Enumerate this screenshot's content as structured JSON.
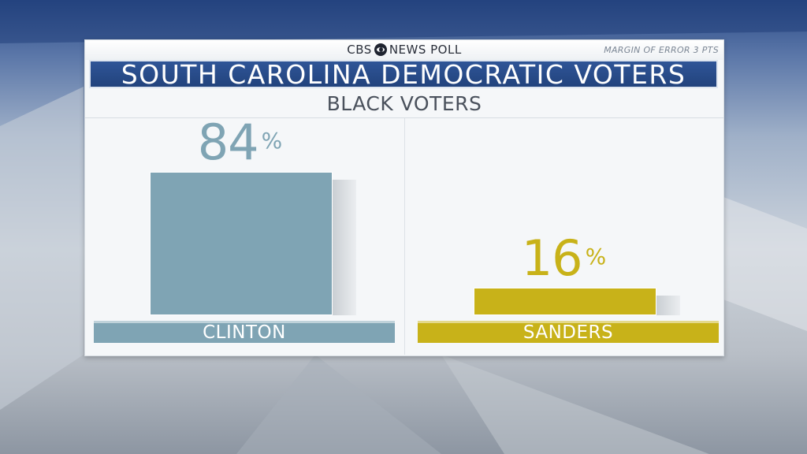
{
  "header": {
    "brand_left": "CBS",
    "brand_right": "NEWS POLL",
    "margin_of_error": "MARGIN OF ERROR 3 PTS"
  },
  "colors": {
    "title_bar": "#2a4d8c",
    "clinton": "#7fa4b4",
    "sanders": "#c8b219"
  },
  "icons": {
    "brand_logo": "cbs-eye-icon"
  },
  "chart_data": {
    "type": "bar",
    "title": "SOUTH CAROLINA DEMOCRATIC VOTERS",
    "subtitle": "BLACK VOTERS",
    "categories": [
      "CLINTON",
      "SANDERS"
    ],
    "values": [
      84,
      16
    ],
    "value_labels": [
      "84",
      "16"
    ],
    "unit": "%",
    "ylim": [
      0,
      100
    ],
    "grid": false,
    "legend": "none"
  }
}
